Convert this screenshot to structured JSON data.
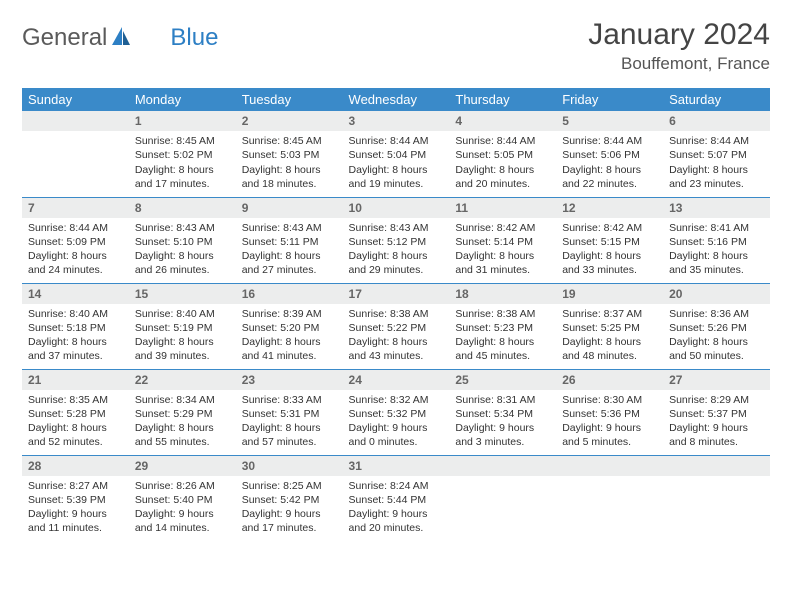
{
  "brand": {
    "part1": "General",
    "part2": "Blue"
  },
  "title": "January 2024",
  "location": "Bouffemont, France",
  "colors": {
    "header_bg": "#3a8ac9",
    "header_text": "#ffffff",
    "daynum_bg": "#eceded",
    "border": "#3a8ac9",
    "logo_gray": "#5a5a5a",
    "logo_blue": "#2d7fc4"
  },
  "weekdays": [
    "Sunday",
    "Monday",
    "Tuesday",
    "Wednesday",
    "Thursday",
    "Friday",
    "Saturday"
  ],
  "start_offset": 1,
  "days": [
    {
      "n": 1,
      "sr": "8:45 AM",
      "ss": "5:02 PM",
      "dl": "8 hours and 17 minutes."
    },
    {
      "n": 2,
      "sr": "8:45 AM",
      "ss": "5:03 PM",
      "dl": "8 hours and 18 minutes."
    },
    {
      "n": 3,
      "sr": "8:44 AM",
      "ss": "5:04 PM",
      "dl": "8 hours and 19 minutes."
    },
    {
      "n": 4,
      "sr": "8:44 AM",
      "ss": "5:05 PM",
      "dl": "8 hours and 20 minutes."
    },
    {
      "n": 5,
      "sr": "8:44 AM",
      "ss": "5:06 PM",
      "dl": "8 hours and 22 minutes."
    },
    {
      "n": 6,
      "sr": "8:44 AM",
      "ss": "5:07 PM",
      "dl": "8 hours and 23 minutes."
    },
    {
      "n": 7,
      "sr": "8:44 AM",
      "ss": "5:09 PM",
      "dl": "8 hours and 24 minutes."
    },
    {
      "n": 8,
      "sr": "8:43 AM",
      "ss": "5:10 PM",
      "dl": "8 hours and 26 minutes."
    },
    {
      "n": 9,
      "sr": "8:43 AM",
      "ss": "5:11 PM",
      "dl": "8 hours and 27 minutes."
    },
    {
      "n": 10,
      "sr": "8:43 AM",
      "ss": "5:12 PM",
      "dl": "8 hours and 29 minutes."
    },
    {
      "n": 11,
      "sr": "8:42 AM",
      "ss": "5:14 PM",
      "dl": "8 hours and 31 minutes."
    },
    {
      "n": 12,
      "sr": "8:42 AM",
      "ss": "5:15 PM",
      "dl": "8 hours and 33 minutes."
    },
    {
      "n": 13,
      "sr": "8:41 AM",
      "ss": "5:16 PM",
      "dl": "8 hours and 35 minutes."
    },
    {
      "n": 14,
      "sr": "8:40 AM",
      "ss": "5:18 PM",
      "dl": "8 hours and 37 minutes."
    },
    {
      "n": 15,
      "sr": "8:40 AM",
      "ss": "5:19 PM",
      "dl": "8 hours and 39 minutes."
    },
    {
      "n": 16,
      "sr": "8:39 AM",
      "ss": "5:20 PM",
      "dl": "8 hours and 41 minutes."
    },
    {
      "n": 17,
      "sr": "8:38 AM",
      "ss": "5:22 PM",
      "dl": "8 hours and 43 minutes."
    },
    {
      "n": 18,
      "sr": "8:38 AM",
      "ss": "5:23 PM",
      "dl": "8 hours and 45 minutes."
    },
    {
      "n": 19,
      "sr": "8:37 AM",
      "ss": "5:25 PM",
      "dl": "8 hours and 48 minutes."
    },
    {
      "n": 20,
      "sr": "8:36 AM",
      "ss": "5:26 PM",
      "dl": "8 hours and 50 minutes."
    },
    {
      "n": 21,
      "sr": "8:35 AM",
      "ss": "5:28 PM",
      "dl": "8 hours and 52 minutes."
    },
    {
      "n": 22,
      "sr": "8:34 AM",
      "ss": "5:29 PM",
      "dl": "8 hours and 55 minutes."
    },
    {
      "n": 23,
      "sr": "8:33 AM",
      "ss": "5:31 PM",
      "dl": "8 hours and 57 minutes."
    },
    {
      "n": 24,
      "sr": "8:32 AM",
      "ss": "5:32 PM",
      "dl": "9 hours and 0 minutes."
    },
    {
      "n": 25,
      "sr": "8:31 AM",
      "ss": "5:34 PM",
      "dl": "9 hours and 3 minutes."
    },
    {
      "n": 26,
      "sr": "8:30 AM",
      "ss": "5:36 PM",
      "dl": "9 hours and 5 minutes."
    },
    {
      "n": 27,
      "sr": "8:29 AM",
      "ss": "5:37 PM",
      "dl": "9 hours and 8 minutes."
    },
    {
      "n": 28,
      "sr": "8:27 AM",
      "ss": "5:39 PM",
      "dl": "9 hours and 11 minutes."
    },
    {
      "n": 29,
      "sr": "8:26 AM",
      "ss": "5:40 PM",
      "dl": "9 hours and 14 minutes."
    },
    {
      "n": 30,
      "sr": "8:25 AM",
      "ss": "5:42 PM",
      "dl": "9 hours and 17 minutes."
    },
    {
      "n": 31,
      "sr": "8:24 AM",
      "ss": "5:44 PM",
      "dl": "9 hours and 20 minutes."
    }
  ],
  "labels": {
    "sunrise": "Sunrise:",
    "sunset": "Sunset:",
    "daylight": "Daylight:"
  }
}
